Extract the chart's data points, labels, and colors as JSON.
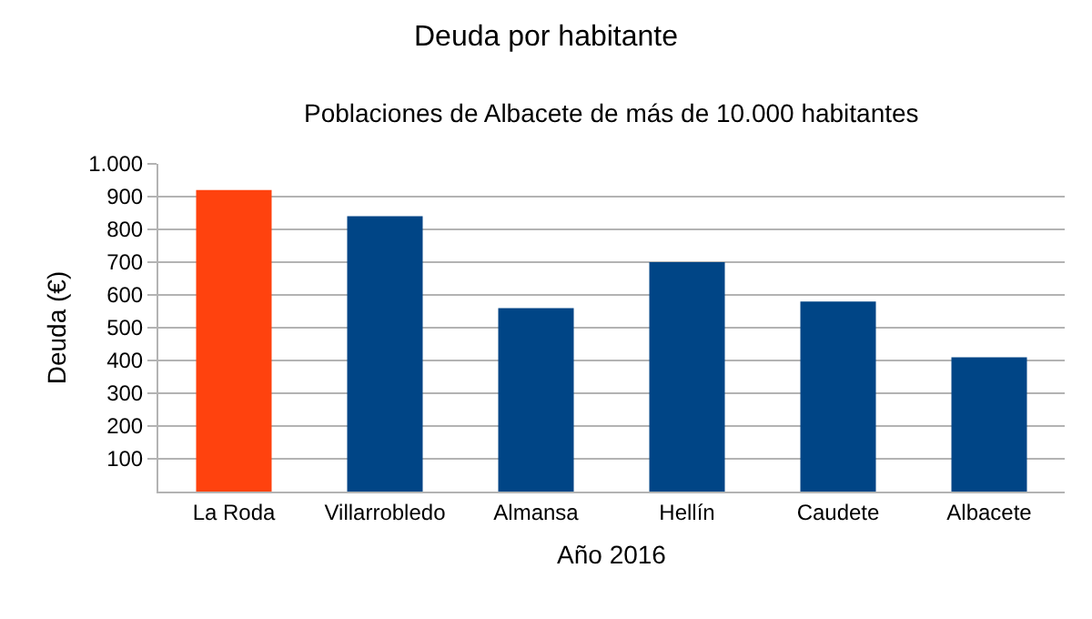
{
  "chart_data": {
    "type": "bar",
    "title": "Deuda por habitante",
    "subtitle": "Poblaciones de Albacete de más de 10.000 habitantes",
    "xlabel": "Año 2016",
    "ylabel": "Deuda (€)",
    "categories": [
      "La Roda",
      "Villarrobledo",
      "Almansa",
      "Hellín",
      "Caudete",
      "Albacete"
    ],
    "values": [
      920,
      840,
      560,
      700,
      580,
      410
    ],
    "colors": [
      "#ff420e",
      "#004586",
      "#004586",
      "#004586",
      "#004586",
      "#004586"
    ],
    "ylim": [
      0,
      1000
    ],
    "yticks": [
      100,
      200,
      300,
      400,
      500,
      600,
      700,
      800,
      900,
      {
        "value": 1000,
        "label": "1.000"
      }
    ],
    "grid": "y"
  }
}
